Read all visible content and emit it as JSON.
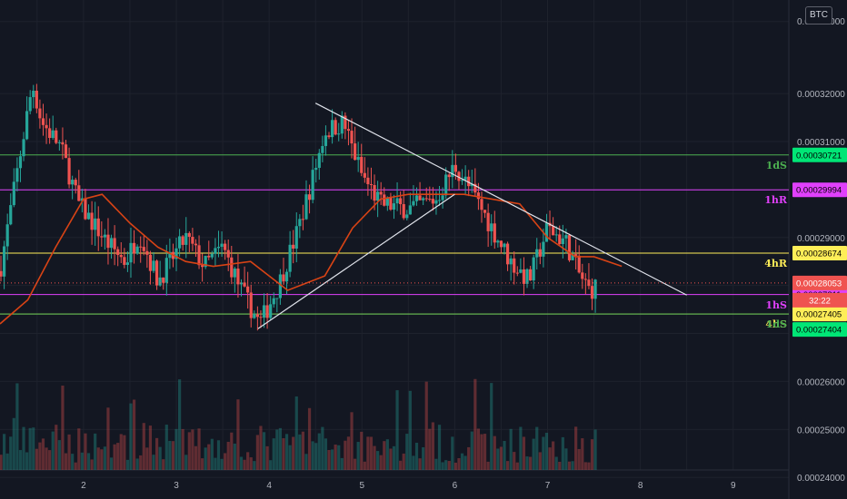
{
  "symbol_badge": "BTC",
  "colors": {
    "background": "#131722",
    "grid": "#1e222d",
    "up": "#26a69a",
    "down": "#ef5350",
    "ma": "#d84315",
    "trendline": "#e0e3eb",
    "green_level": "#4caf50",
    "magenta_level": "#e040fb",
    "yellow_level": "#ffee58"
  },
  "chart_data": {
    "type": "candlestick",
    "y_axis": {
      "range": [
        0.0002355,
        0.0003395
      ],
      "tick_labels": [
        "0.00032000",
        "0.00031000",
        "0.00029000",
        "0.00026000",
        "0.00025000",
        "0.00024000"
      ],
      "tick_values": [
        0.00032,
        0.00031,
        0.00029,
        0.00026,
        0.00025,
        0.00024
      ],
      "top_label_partial": "0.0003..000"
    },
    "x_axis": {
      "tick_labels": [
        "2",
        "3",
        "4",
        "5",
        "6",
        "7",
        "8",
        "9"
      ],
      "tick_values": [
        2,
        3,
        4,
        5,
        6,
        7,
        8,
        9
      ],
      "range": [
        1.1,
        9.6
      ]
    },
    "grid": true,
    "price_levels": [
      {
        "name": "1dS",
        "price": 0.00030721,
        "price_label": "0.00030721",
        "color": "#4caf50",
        "tag_bg": "#00e676",
        "tag_text": "#000000"
      },
      {
        "name": "1hR",
        "price": 0.00029994,
        "price_label": "0.00029994",
        "color": "#e040fb",
        "tag_bg": "#e040fb",
        "tag_text": "#000000"
      },
      {
        "name": "4hR",
        "price": 0.00028674,
        "price_label": "0.00028674",
        "color": "#ffee58",
        "tag_bg": "#ffee58",
        "tag_text": "#000000"
      },
      {
        "name": "1hS",
        "price": 0.00027811,
        "price_label": "0.00027811",
        "color": "#e040fb",
        "tag_bg": "#e040fb",
        "tag_text": "#000000"
      },
      {
        "name": "4hS",
        "price": 0.00027405,
        "price_label": "0.00027405",
        "color": "#ffee58",
        "tag_bg": "#ffee58",
        "tag_text": "#000000"
      },
      {
        "name": "1dS",
        "price": 0.00027404,
        "price_label": "0.00027404",
        "color": "#4caf50",
        "tag_bg": "#00e676",
        "tag_text": "#000000"
      }
    ],
    "last_price": {
      "price": 0.00028053,
      "price_label": "0.00028053",
      "countdown": "32:22",
      "color": "#ef5350"
    },
    "trendlines": [
      {
        "name": "descending-resistance",
        "points": [
          [
            4.5,
            0.000318
          ],
          [
            8.5,
            0.000278
          ]
        ]
      },
      {
        "name": "rising-support",
        "points": [
          [
            3.88,
            0.000271
          ],
          [
            6.0,
            0.000299
          ]
        ]
      }
    ],
    "moving_average": {
      "points": [
        [
          1.1,
          0.000272
        ],
        [
          1.4,
          0.000277
        ],
        [
          1.7,
          0.000288
        ],
        [
          2.0,
          0.000298
        ],
        [
          2.2,
          0.000299
        ],
        [
          2.5,
          0.000293
        ],
        [
          2.8,
          0.000288
        ],
        [
          3.1,
          0.000285
        ],
        [
          3.4,
          0.000284
        ],
        [
          3.8,
          0.000285
        ],
        [
          4.0,
          0.000282
        ],
        [
          4.2,
          0.000279
        ],
        [
          4.6,
          0.000282
        ],
        [
          4.9,
          0.000292
        ],
        [
          5.2,
          0.000298
        ],
        [
          5.5,
          0.000299
        ],
        [
          5.8,
          0.000299
        ],
        [
          6.1,
          0.000299
        ],
        [
          6.4,
          0.000298
        ],
        [
          6.7,
          0.000297
        ],
        [
          7.0,
          0.00029
        ],
        [
          7.3,
          0.000286
        ],
        [
          7.5,
          0.000286
        ],
        [
          7.8,
          0.000284
        ]
      ]
    },
    "price_path": [
      [
        1.1,
        0.000283
      ],
      [
        1.45,
        0.000322
      ],
      [
        1.55,
        0.000314
      ],
      [
        1.75,
        0.000309
      ],
      [
        1.95,
        0.000297
      ],
      [
        2.25,
        0.000289
      ],
      [
        2.45,
        0.000285
      ],
      [
        2.6,
        0.000291
      ],
      [
        2.8,
        0.000281
      ],
      [
        3.1,
        0.00029
      ],
      [
        3.3,
        0.000284
      ],
      [
        3.5,
        0.000288
      ],
      [
        3.7,
        0.000279
      ],
      [
        3.9,
        0.000272
      ],
      [
        4.1,
        0.00028
      ],
      [
        4.3,
        0.000291
      ],
      [
        4.45,
        0.000301
      ],
      [
        4.6,
        0.000312
      ],
      [
        4.8,
        0.000314
      ],
      [
        5.0,
        0.000303
      ],
      [
        5.2,
        0.000297
      ],
      [
        5.5,
        0.000296
      ],
      [
        5.8,
        0.000298
      ],
      [
        6.0,
        0.000305
      ],
      [
        6.2,
        0.000299
      ],
      [
        6.4,
        0.000292
      ],
      [
        6.6,
        0.000285
      ],
      [
        6.8,
        0.000281
      ],
      [
        7.0,
        0.000292
      ],
      [
        7.2,
        0.000289
      ],
      [
        7.35,
        0.000282
      ],
      [
        7.45,
        0.000279
      ],
      [
        7.55,
        0.00028
      ]
    ]
  }
}
